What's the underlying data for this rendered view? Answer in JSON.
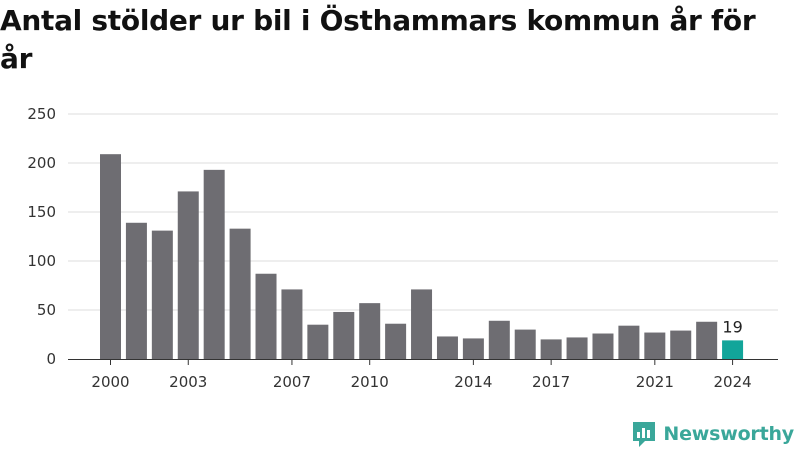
{
  "title": "Antal stölder ur bil i Östhammars kommun år för år",
  "brand": {
    "name": "Newsworthy",
    "icon": "newsworthy-logo-icon",
    "color": "#3aa79a"
  },
  "chart_data": {
    "type": "bar",
    "title": "Antal stölder ur bil i Östhammars kommun år för år",
    "xlabel": "",
    "ylabel": "",
    "categories": [
      "2000",
      "2001",
      "2002",
      "2003",
      "2004",
      "2005",
      "2006",
      "2007",
      "2008",
      "2009",
      "2010",
      "2011",
      "2012",
      "2013",
      "2014",
      "2015",
      "2016",
      "2017",
      "2018",
      "2019",
      "2020",
      "2021",
      "2022",
      "2023",
      "2024"
    ],
    "values": [
      209,
      139,
      131,
      171,
      193,
      133,
      87,
      71,
      35,
      48,
      57,
      36,
      71,
      23,
      21,
      39,
      30,
      20,
      22,
      26,
      34,
      27,
      29,
      38,
      19
    ],
    "x_tick_labels": [
      "2000",
      "2003",
      "2007",
      "2010",
      "2014",
      "2017",
      "2021",
      "2024"
    ],
    "y_ticks": [
      0,
      50,
      100,
      150,
      200,
      250
    ],
    "ylim": [
      0,
      250
    ],
    "grid": "horizontal",
    "highlight": {
      "category": "2024",
      "label": "19"
    },
    "colors": {
      "bar": "#6e6d72",
      "highlight": "#12a59a",
      "grid": "#dddddd",
      "axis": "#333333"
    }
  }
}
